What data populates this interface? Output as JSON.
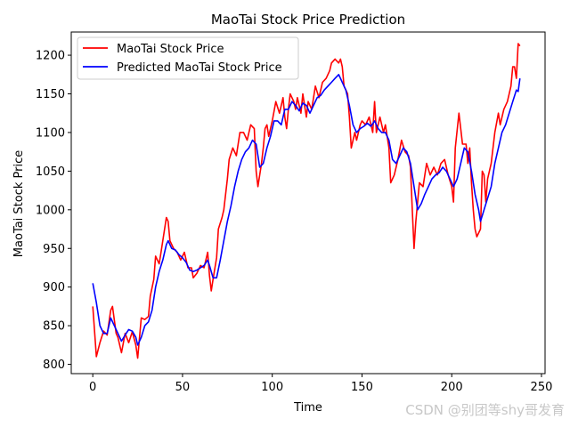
{
  "watermark": "CSDN @别团等shy哥发育",
  "chart_data": {
    "type": "line",
    "title": "MaoTai Stock Price Prediction",
    "xlabel": "Time",
    "ylabel": "MaoTai Stock Price",
    "xlim": [
      -12,
      252
    ],
    "ylim": [
      788,
      1230
    ],
    "xticks": [
      0,
      50,
      100,
      150,
      200,
      250
    ],
    "yticks": [
      800,
      850,
      900,
      950,
      1000,
      1050,
      1100,
      1150,
      1200
    ],
    "legend_position": "upper-left",
    "series": [
      {
        "name": "MaoTai Stock Price",
        "color": "#ff0000",
        "keypoints": [
          [
            0,
            875
          ],
          [
            2,
            810
          ],
          [
            4,
            828
          ],
          [
            6,
            843
          ],
          [
            8,
            838
          ],
          [
            10,
            870
          ],
          [
            11,
            875
          ],
          [
            13,
            840
          ],
          [
            14,
            835
          ],
          [
            16,
            815
          ],
          [
            18,
            840
          ],
          [
            20,
            828
          ],
          [
            22,
            842
          ],
          [
            24,
            825
          ],
          [
            25,
            808
          ],
          [
            27,
            860
          ],
          [
            29,
            858
          ],
          [
            31,
            862
          ],
          [
            32,
            888
          ],
          [
            34,
            910
          ],
          [
            35,
            940
          ],
          [
            37,
            930
          ],
          [
            38,
            945
          ],
          [
            40,
            975
          ],
          [
            41,
            990
          ],
          [
            42,
            985
          ],
          [
            43,
            960
          ],
          [
            45,
            950
          ],
          [
            47,
            945
          ],
          [
            49,
            935
          ],
          [
            51,
            945
          ],
          [
            53,
            925
          ],
          [
            55,
            925
          ],
          [
            56,
            912
          ],
          [
            58,
            918
          ],
          [
            60,
            928
          ],
          [
            62,
            925
          ],
          [
            64,
            945
          ],
          [
            65,
            915
          ],
          [
            66,
            895
          ],
          [
            67,
            910
          ],
          [
            69,
            938
          ],
          [
            70,
            975
          ],
          [
            72,
            990
          ],
          [
            73,
            1000
          ],
          [
            75,
            1040
          ],
          [
            76,
            1065
          ],
          [
            78,
            1080
          ],
          [
            80,
            1070
          ],
          [
            82,
            1100
          ],
          [
            84,
            1100
          ],
          [
            86,
            1090
          ],
          [
            88,
            1110
          ],
          [
            90,
            1105
          ],
          [
            91,
            1050
          ],
          [
            92,
            1030
          ],
          [
            94,
            1060
          ],
          [
            95,
            1080
          ],
          [
            96,
            1105
          ],
          [
            97,
            1110
          ],
          [
            98,
            1095
          ],
          [
            100,
            1115
          ],
          [
            102,
            1140
          ],
          [
            104,
            1125
          ],
          [
            106,
            1145
          ],
          [
            107,
            1120
          ],
          [
            108,
            1105
          ],
          [
            109,
            1130
          ],
          [
            110,
            1150
          ],
          [
            112,
            1140
          ],
          [
            113,
            1130
          ],
          [
            114,
            1145
          ],
          [
            116,
            1125
          ],
          [
            117,
            1150
          ],
          [
            119,
            1120
          ],
          [
            120,
            1140
          ],
          [
            122,
            1130
          ],
          [
            124,
            1160
          ],
          [
            126,
            1145
          ],
          [
            128,
            1165
          ],
          [
            130,
            1170
          ],
          [
            132,
            1180
          ],
          [
            133,
            1190
          ],
          [
            135,
            1195
          ],
          [
            137,
            1190
          ],
          [
            138,
            1195
          ],
          [
            139,
            1185
          ],
          [
            140,
            1160
          ],
          [
            142,
            1150
          ],
          [
            143,
            1120
          ],
          [
            144,
            1080
          ],
          [
            146,
            1100
          ],
          [
            147,
            1090
          ],
          [
            149,
            1110
          ],
          [
            150,
            1115
          ],
          [
            152,
            1110
          ],
          [
            154,
            1120
          ],
          [
            156,
            1100
          ],
          [
            157,
            1140
          ],
          [
            158,
            1100
          ],
          [
            160,
            1120
          ],
          [
            162,
            1100
          ],
          [
            163,
            1110
          ],
          [
            165,
            1080
          ],
          [
            166,
            1035
          ],
          [
            168,
            1045
          ],
          [
            170,
            1065
          ],
          [
            172,
            1090
          ],
          [
            174,
            1075
          ],
          [
            176,
            1070
          ],
          [
            177,
            1055
          ],
          [
            178,
            1000
          ],
          [
            179,
            950
          ],
          [
            180,
            985
          ],
          [
            182,
            1035
          ],
          [
            184,
            1030
          ],
          [
            186,
            1060
          ],
          [
            188,
            1045
          ],
          [
            190,
            1055
          ],
          [
            192,
            1045
          ],
          [
            194,
            1060
          ],
          [
            196,
            1065
          ],
          [
            198,
            1045
          ],
          [
            200,
            1030
          ],
          [
            201,
            1010
          ],
          [
            202,
            1080
          ],
          [
            204,
            1125
          ],
          [
            206,
            1085
          ],
          [
            208,
            1085
          ],
          [
            209,
            1060
          ],
          [
            210,
            1080
          ],
          [
            211,
            1035
          ],
          [
            212,
            1000
          ],
          [
            213,
            975
          ],
          [
            214,
            965
          ],
          [
            216,
            975
          ],
          [
            217,
            1050
          ],
          [
            218,
            1045
          ],
          [
            219,
            1010
          ],
          [
            220,
            1040
          ],
          [
            222,
            1060
          ],
          [
            224,
            1100
          ],
          [
            226,
            1125
          ],
          [
            227,
            1110
          ],
          [
            229,
            1130
          ],
          [
            231,
            1140
          ],
          [
            233,
            1160
          ],
          [
            234,
            1185
          ],
          [
            235,
            1185
          ],
          [
            236,
            1170
          ],
          [
            237,
            1215
          ],
          [
            238,
            1212
          ]
        ]
      },
      {
        "name": "Predicted MaoTai Stock Price",
        "color": "#0000ff",
        "keypoints": [
          [
            0,
            905
          ],
          [
            2,
            880
          ],
          [
            4,
            850
          ],
          [
            6,
            840
          ],
          [
            8,
            840
          ],
          [
            10,
            860
          ],
          [
            12,
            850
          ],
          [
            14,
            840
          ],
          [
            16,
            830
          ],
          [
            18,
            838
          ],
          [
            20,
            845
          ],
          [
            22,
            843
          ],
          [
            24,
            835
          ],
          [
            25,
            825
          ],
          [
            27,
            835
          ],
          [
            29,
            850
          ],
          [
            31,
            855
          ],
          [
            33,
            870
          ],
          [
            35,
            900
          ],
          [
            37,
            920
          ],
          [
            39,
            935
          ],
          [
            41,
            955
          ],
          [
            42,
            960
          ],
          [
            44,
            950
          ],
          [
            46,
            948
          ],
          [
            48,
            942
          ],
          [
            50,
            938
          ],
          [
            52,
            932
          ],
          [
            54,
            922
          ],
          [
            56,
            920
          ],
          [
            58,
            922
          ],
          [
            60,
            925
          ],
          [
            62,
            928
          ],
          [
            64,
            935
          ],
          [
            65,
            928
          ],
          [
            67,
            912
          ],
          [
            69,
            912
          ],
          [
            71,
            935
          ],
          [
            73,
            960
          ],
          [
            75,
            985
          ],
          [
            77,
            1005
          ],
          [
            79,
            1030
          ],
          [
            81,
            1050
          ],
          [
            83,
            1065
          ],
          [
            85,
            1075
          ],
          [
            87,
            1080
          ],
          [
            89,
            1090
          ],
          [
            91,
            1085
          ],
          [
            93,
            1055
          ],
          [
            95,
            1060
          ],
          [
            97,
            1080
          ],
          [
            99,
            1095
          ],
          [
            101,
            1115
          ],
          [
            103,
            1115
          ],
          [
            105,
            1110
          ],
          [
            107,
            1130
          ],
          [
            109,
            1130
          ],
          [
            111,
            1140
          ],
          [
            113,
            1135
          ],
          [
            115,
            1128
          ],
          [
            117,
            1138
          ],
          [
            119,
            1135
          ],
          [
            121,
            1125
          ],
          [
            123,
            1135
          ],
          [
            125,
            1145
          ],
          [
            127,
            1148
          ],
          [
            129,
            1155
          ],
          [
            131,
            1160
          ],
          [
            133,
            1165
          ],
          [
            135,
            1170
          ],
          [
            137,
            1175
          ],
          [
            139,
            1165
          ],
          [
            141,
            1155
          ],
          [
            143,
            1135
          ],
          [
            145,
            1110
          ],
          [
            147,
            1100
          ],
          [
            149,
            1105
          ],
          [
            151,
            1108
          ],
          [
            153,
            1112
          ],
          [
            155,
            1108
          ],
          [
            157,
            1115
          ],
          [
            159,
            1105
          ],
          [
            161,
            1100
          ],
          [
            163,
            1100
          ],
          [
            165,
            1090
          ],
          [
            167,
            1065
          ],
          [
            169,
            1060
          ],
          [
            171,
            1070
          ],
          [
            173,
            1080
          ],
          [
            175,
            1075
          ],
          [
            177,
            1060
          ],
          [
            179,
            1030
          ],
          [
            181,
            1000
          ],
          [
            183,
            1008
          ],
          [
            185,
            1020
          ],
          [
            187,
            1030
          ],
          [
            189,
            1040
          ],
          [
            191,
            1045
          ],
          [
            193,
            1048
          ],
          [
            195,
            1055
          ],
          [
            197,
            1050
          ],
          [
            199,
            1040
          ],
          [
            201,
            1030
          ],
          [
            203,
            1040
          ],
          [
            205,
            1060
          ],
          [
            207,
            1080
          ],
          [
            209,
            1075
          ],
          [
            211,
            1050
          ],
          [
            213,
            1020
          ],
          [
            215,
            1000
          ],
          [
            216,
            985
          ],
          [
            218,
            1000
          ],
          [
            220,
            1015
          ],
          [
            222,
            1030
          ],
          [
            224,
            1060
          ],
          [
            226,
            1080
          ],
          [
            228,
            1100
          ],
          [
            230,
            1110
          ],
          [
            232,
            1125
          ],
          [
            234,
            1140
          ],
          [
            236,
            1155
          ],
          [
            237,
            1153
          ],
          [
            238,
            1170
          ]
        ]
      }
    ]
  }
}
